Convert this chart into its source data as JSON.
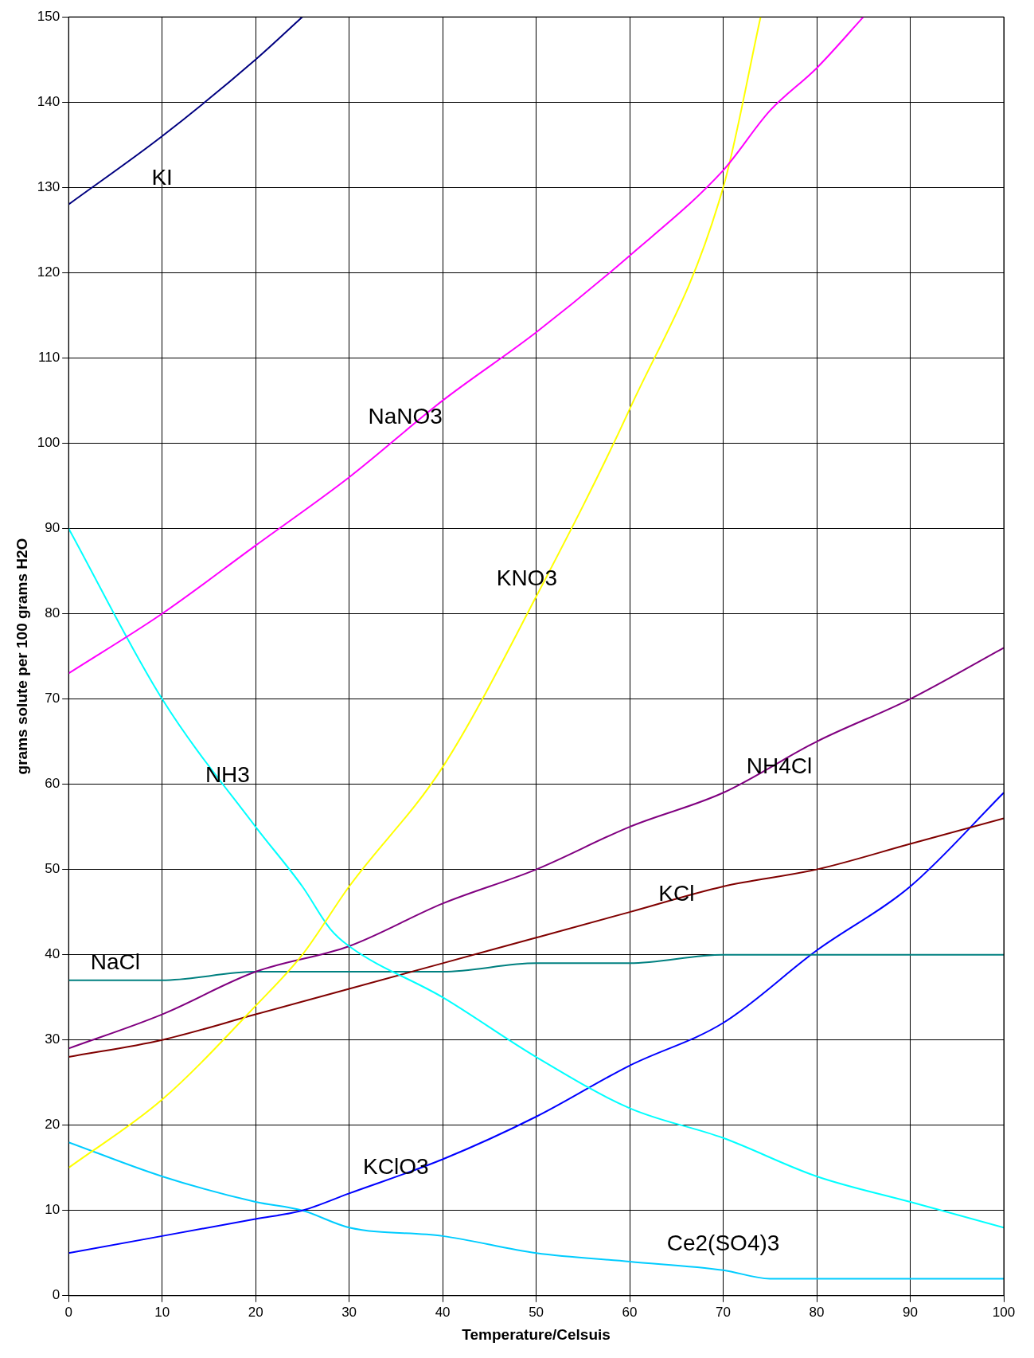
{
  "chart_data": {
    "type": "line",
    "xlabel": "Temperature/Celsuis",
    "ylabel": "grams solute per 100 grams H2O",
    "xlim": [
      0,
      100
    ],
    "ylim": [
      0,
      150
    ],
    "xticks": [
      0,
      10,
      20,
      30,
      40,
      50,
      60,
      70,
      80,
      90,
      100
    ],
    "yticks": [
      0,
      10,
      20,
      30,
      40,
      50,
      60,
      70,
      80,
      90,
      100,
      110,
      120,
      130,
      140,
      150
    ],
    "grid": true,
    "legend": false,
    "marker": "none",
    "line_style": "solid",
    "series": [
      {
        "name": "KI",
        "color": "#000080",
        "x": [
          0,
          10,
          20,
          25
        ],
        "values": [
          128,
          136,
          145,
          150
        ]
      },
      {
        "name": "NaNO3",
        "color": "#ff00ff",
        "x": [
          0,
          10,
          20,
          30,
          40,
          50,
          60,
          70,
          75,
          80,
          85
        ],
        "values": [
          73,
          80,
          88,
          96,
          105,
          113,
          122,
          132,
          139,
          144,
          150
        ]
      },
      {
        "name": "KNO3",
        "color": "#ffff00",
        "x": [
          0,
          10,
          20,
          25,
          30,
          40,
          50,
          60,
          70,
          74
        ],
        "values": [
          15,
          23,
          34,
          40,
          48,
          62,
          82,
          104,
          130,
          150
        ]
      },
      {
        "name": "NH3",
        "color": "#00ffff",
        "x": [
          0,
          10,
          20,
          25,
          28,
          30,
          40,
          50,
          60,
          70,
          80,
          90,
          100
        ],
        "values": [
          90,
          70,
          55,
          48,
          43,
          41,
          35,
          28,
          22,
          18.5,
          14,
          11,
          8
        ]
      },
      {
        "name": "NH4Cl",
        "color": "#800080",
        "x": [
          0,
          10,
          20,
          30,
          40,
          50,
          60,
          70,
          80,
          90,
          100
        ],
        "values": [
          29,
          33,
          38,
          41,
          46,
          50,
          55,
          59,
          65,
          70,
          76
        ]
      },
      {
        "name": "KCl",
        "color": "#800000",
        "x": [
          0,
          10,
          20,
          30,
          40,
          50,
          60,
          70,
          80,
          90,
          100
        ],
        "values": [
          28,
          30,
          33,
          36,
          39,
          42,
          45,
          48,
          50,
          53,
          56
        ]
      },
      {
        "name": "NaCl",
        "color": "#008080",
        "x": [
          0,
          10,
          20,
          30,
          40,
          50,
          60,
          70,
          80,
          90,
          100
        ],
        "values": [
          37,
          37,
          38,
          38,
          38,
          39,
          39,
          40,
          40,
          40,
          40
        ]
      },
      {
        "name": "KClO3",
        "color": "#0000ff",
        "x": [
          0,
          10,
          20,
          25,
          30,
          40,
          50,
          60,
          70,
          80,
          90,
          100
        ],
        "values": [
          5,
          7,
          9,
          10,
          12,
          16,
          21,
          27,
          32,
          40.5,
          48,
          59
        ]
      },
      {
        "name": "Ce2(SO4)3",
        "color": "#00ccff",
        "x": [
          0,
          10,
          20,
          25,
          30,
          40,
          50,
          60,
          70,
          75,
          80,
          90,
          100
        ],
        "values": [
          18,
          14,
          11,
          10,
          8,
          7,
          5,
          4,
          3,
          2,
          2,
          2,
          2
        ]
      }
    ]
  }
}
